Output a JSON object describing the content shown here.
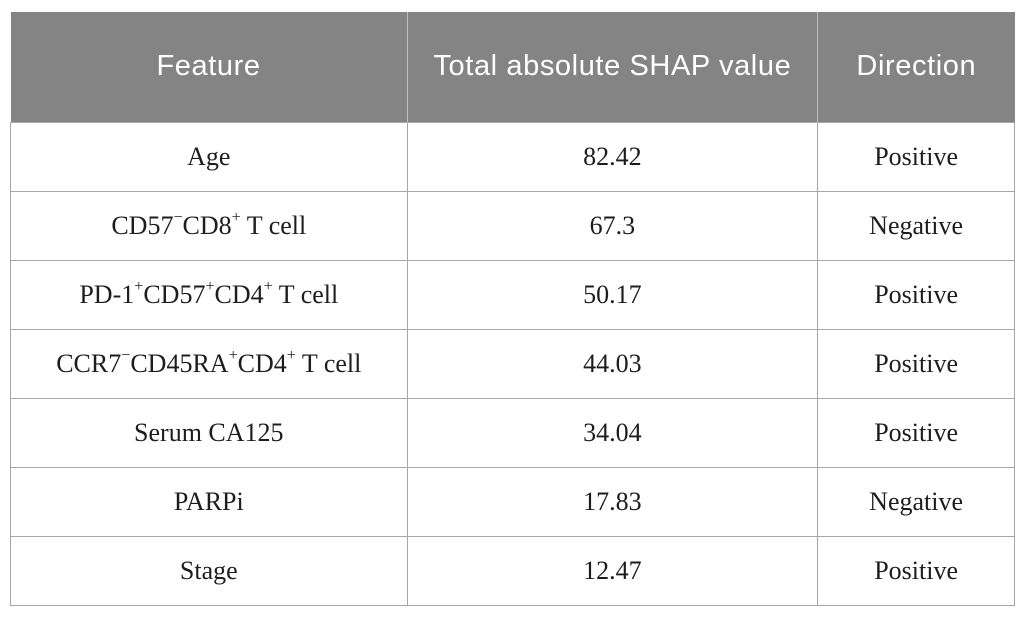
{
  "table": {
    "columns": [
      {
        "key": "feature",
        "label": "Feature"
      },
      {
        "key": "shap",
        "label": "Total absolute SHAP value"
      },
      {
        "key": "direction",
        "label": "Direction"
      }
    ],
    "rows": [
      {
        "feature": [
          {
            "t": "Age"
          }
        ],
        "shap": "82.42",
        "direction": "Positive"
      },
      {
        "feature": [
          {
            "t": "CD57"
          },
          {
            "sup": "−"
          },
          {
            "t": "CD8"
          },
          {
            "sup": "+"
          },
          {
            "t": " T cell"
          }
        ],
        "shap": "67.3",
        "direction": "Negative"
      },
      {
        "feature": [
          {
            "t": "PD-1"
          },
          {
            "sup": "+"
          },
          {
            "t": "CD57"
          },
          {
            "sup": "+"
          },
          {
            "t": "CD4"
          },
          {
            "sup": "+"
          },
          {
            "t": " T cell"
          }
        ],
        "shap": "50.17",
        "direction": "Positive"
      },
      {
        "feature": [
          {
            "t": "CCR7"
          },
          {
            "sup": "−"
          },
          {
            "t": "CD45RA"
          },
          {
            "sup": "+"
          },
          {
            "t": "CD4"
          },
          {
            "sup": "+"
          },
          {
            "t": " T cell"
          }
        ],
        "shap": "44.03",
        "direction": "Positive"
      },
      {
        "feature": [
          {
            "t": "Serum CA125"
          }
        ],
        "shap": "34.04",
        "direction": "Positive"
      },
      {
        "feature": [
          {
            "t": "PARPi"
          }
        ],
        "shap": "17.83",
        "direction": "Negative"
      },
      {
        "feature": [
          {
            "t": "Stage"
          }
        ],
        "shap": "12.47",
        "direction": "Positive"
      }
    ]
  },
  "colors": {
    "header_bg": "#848484",
    "header_text": "#ffffff",
    "body_text": "#1d1d1d",
    "border": "#a6a6a6",
    "header_divider": "#bdbdbd"
  },
  "chart_data": {
    "type": "table",
    "title": "",
    "columns": [
      "Feature",
      "Total absolute SHAP value",
      "Direction"
    ],
    "rows": [
      [
        "Age",
        82.42,
        "Positive"
      ],
      [
        "CD57⁻CD8⁺ T cell",
        67.3,
        "Negative"
      ],
      [
        "PD-1⁺CD57⁺CD4⁺ T cell",
        50.17,
        "Positive"
      ],
      [
        "CCR7⁻CD45RA⁺CD4⁺ T cell",
        44.03,
        "Positive"
      ],
      [
        "Serum CA125",
        34.04,
        "Positive"
      ],
      [
        "PARPi",
        17.83,
        "Negative"
      ],
      [
        "Stage",
        12.47,
        "Positive"
      ]
    ],
    "layout": {
      "header_style": "gray-filled",
      "grid": "full-borders",
      "alignment": "center"
    }
  }
}
